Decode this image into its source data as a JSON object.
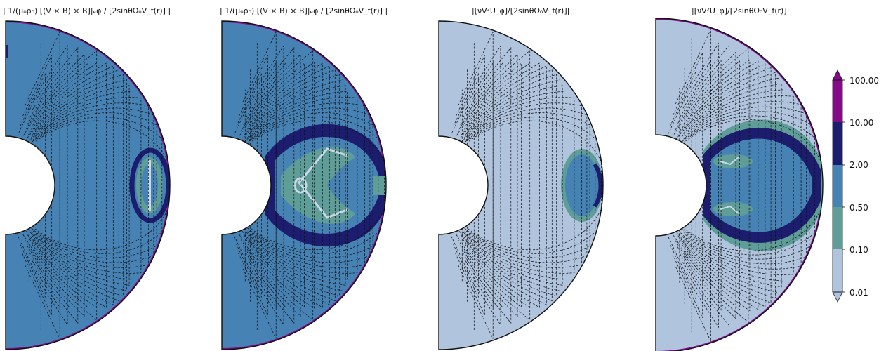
{
  "chart_data": [
    {
      "type": "heatmap",
      "title": "| 1/(μ₀ρ₀) [(∇ × B) × B]|ₑφ / [2sinθΩ₀V_f(r)] |",
      "region_levels": {
        "background": "0.50-2.00",
        "ring": "2.00-10.00",
        "core": "0.50-2.00",
        "streak": "0.10-0.50",
        "edge": ">10.00"
      }
    },
    {
      "type": "heatmap",
      "title": "| 1/(μ₀ρ₀) [(∇ × B) × B]|ₑφ / [2sinθΩ₀V_f(r)] |",
      "region_levels": {
        "background": "0.50-2.00",
        "band": "2.00-10.00",
        "inner": "0.10-0.50",
        "streak": "0.01-0.10",
        "edge": ">10.00"
      }
    },
    {
      "type": "heatmap",
      "title": "|[ν∇²U_φ]/[2sinθΩ₀V_f(r)]|",
      "region_levels": {
        "background": "0.01-0.10",
        "lobe": "0.50-2.00",
        "rim": "0.10-0.50",
        "ring": "2.00-10.00"
      }
    },
    {
      "type": "heatmap",
      "title": "|[ν∇²U_φ]/[2sinθΩ₀V_f(r)]|",
      "region_levels": {
        "background": "0.01-0.10",
        "envelope": "0.10-0.50",
        "band": "2.00-10.00",
        "core": "0.50-2.00",
        "edge": ">10.00"
      }
    }
  ],
  "colorbar": {
    "ticks": [
      "100.00",
      "10.00",
      "2.00",
      "0.50",
      "0.10",
      "0.01"
    ],
    "colors": [
      "#850a8a",
      "#1c1d6e",
      "#4682b4",
      "#5f9e98",
      "#b0c4de"
    ],
    "extend": "both"
  },
  "colors": {
    "light": "#b0c4de",
    "teal": "#5f9e98",
    "steel": "#4682b4",
    "navy": "#1c1d6e",
    "purple": "#850a8a",
    "streak": "#c8d8e8"
  }
}
